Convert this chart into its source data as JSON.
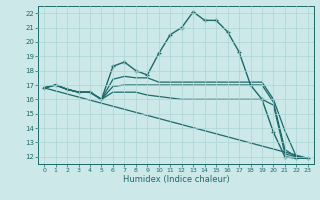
{
  "xlabel": "Humidex (Indice chaleur)",
  "ylabel": "",
  "background_color": "#cce8e8",
  "line_color": "#1a6b6b",
  "grid_color": "#aad4d4",
  "ylim": [
    11.5,
    22.5
  ],
  "xlim": [
    -0.5,
    23.5
  ],
  "yticks": [
    12,
    13,
    14,
    15,
    16,
    17,
    18,
    19,
    20,
    21,
    22
  ],
  "xticks": [
    0,
    1,
    2,
    3,
    4,
    5,
    6,
    7,
    8,
    9,
    10,
    11,
    12,
    13,
    14,
    15,
    16,
    17,
    18,
    19,
    20,
    21,
    22,
    23
  ],
  "lines": [
    {
      "x": [
        0,
        1,
        2,
        3,
        4,
        5,
        6,
        7,
        8,
        9,
        10,
        11,
        12,
        13,
        14,
        15,
        16,
        17,
        18,
        19,
        20,
        21,
        22,
        23
      ],
      "y": [
        16.8,
        17.0,
        16.7,
        16.5,
        16.5,
        16.0,
        18.3,
        18.6,
        18.0,
        17.7,
        19.2,
        20.5,
        21.0,
        22.1,
        21.5,
        21.5,
        20.7,
        19.3,
        17.0,
        16.0,
        13.7,
        12.0,
        11.9,
        11.9
      ],
      "marker": "+",
      "linewidth": 1.0
    },
    {
      "x": [
        0,
        1,
        2,
        3,
        4,
        5,
        6,
        7,
        8,
        9,
        10,
        11,
        12,
        13,
        14,
        15,
        16,
        17,
        18,
        19,
        20,
        21,
        22,
        23
      ],
      "y": [
        16.8,
        17.0,
        16.7,
        16.5,
        16.5,
        16.0,
        17.4,
        17.6,
        17.5,
        17.5,
        17.2,
        17.2,
        17.2,
        17.2,
        17.2,
        17.2,
        17.2,
        17.2,
        17.2,
        17.2,
        16.0,
        13.8,
        12.0,
        11.9
      ],
      "marker": null,
      "linewidth": 0.9
    },
    {
      "x": [
        0,
        1,
        2,
        3,
        4,
        5,
        6,
        7,
        8,
        9,
        10,
        11,
        12,
        13,
        14,
        15,
        16,
        17,
        18,
        19,
        20,
        21,
        22,
        23
      ],
      "y": [
        16.8,
        17.0,
        16.7,
        16.5,
        16.5,
        16.0,
        16.9,
        17.0,
        17.0,
        17.0,
        17.0,
        17.0,
        17.0,
        17.0,
        17.0,
        17.0,
        17.0,
        17.0,
        17.0,
        17.0,
        15.8,
        12.5,
        12.0,
        11.9
      ],
      "marker": null,
      "linewidth": 0.9
    },
    {
      "x": [
        0,
        1,
        2,
        3,
        4,
        5,
        6,
        7,
        8,
        9,
        10,
        11,
        12,
        13,
        14,
        15,
        16,
        17,
        18,
        19,
        20,
        21,
        22,
        23
      ],
      "y": [
        16.8,
        17.0,
        16.7,
        16.5,
        16.5,
        16.0,
        16.5,
        16.5,
        16.5,
        16.3,
        16.2,
        16.1,
        16.0,
        16.0,
        16.0,
        16.0,
        16.0,
        16.0,
        16.0,
        16.0,
        15.6,
        12.2,
        12.0,
        11.9
      ],
      "marker": null,
      "linewidth": 0.9
    },
    {
      "x": [
        0,
        23
      ],
      "y": [
        16.8,
        11.9
      ],
      "marker": null,
      "linewidth": 0.9
    }
  ]
}
